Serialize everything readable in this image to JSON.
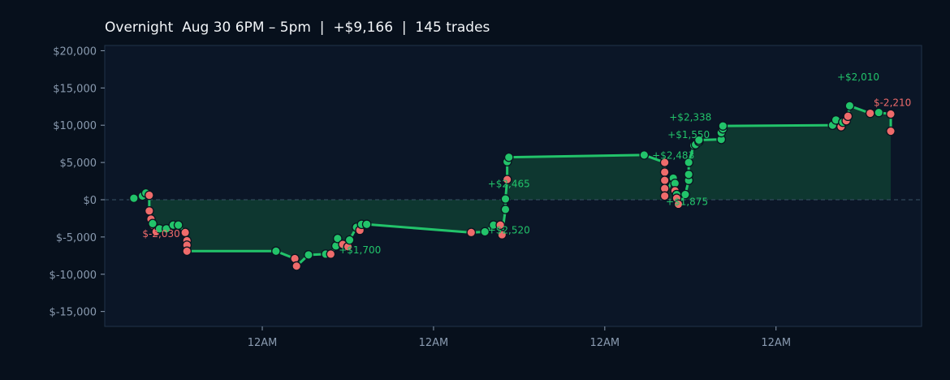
{
  "title": "Overnight  Aug 30 6PM – 5pm  |  +$9,166  |  145 trades",
  "colors": {
    "background": "#07101c",
    "plot_bg": "#0b1627",
    "line": "#22c36a",
    "fill": "#0f3d33",
    "win": "#22c36a",
    "loss": "#ef6b6b",
    "axis_text": "#8a9bb0",
    "zero_line": "#3a5166"
  },
  "chart_data": {
    "type": "line",
    "x_ticks": [
      "12AM",
      "12AM",
      "12AM",
      "12AM"
    ],
    "x_tick_positions": [
      1.0,
      2.0,
      3.0,
      4.0
    ],
    "xlim": [
      0.08,
      4.85
    ],
    "y_ticks": [
      "$20,000",
      "$15,000",
      "$10,000",
      "$5,000",
      "$0",
      "$-5,000",
      "$-10,000",
      "$-15,000"
    ],
    "y_tick_values": [
      20000,
      15000,
      10000,
      5000,
      0,
      -5000,
      -10000,
      -15000
    ],
    "ylim": [
      -17000,
      20700
    ],
    "grid": false,
    "series": [
      {
        "points": [
          [
            0.25,
            200,
            "w"
          ],
          [
            0.3,
            500,
            "w"
          ],
          [
            0.32,
            900,
            "w"
          ],
          [
            0.34,
            600,
            "l"
          ],
          [
            0.34,
            -1500,
            "l"
          ],
          [
            0.35,
            -2600,
            "l"
          ],
          [
            0.36,
            -3400,
            "l"
          ],
          [
            0.36,
            -3200,
            "w"
          ],
          [
            0.38,
            -4300,
            "l"
          ],
          [
            0.4,
            -3900,
            "w"
          ],
          [
            0.44,
            -3900,
            "w"
          ],
          [
            0.48,
            -3400,
            "w"
          ],
          [
            0.51,
            -3400,
            "w"
          ],
          [
            0.55,
            -4400,
            "l"
          ],
          [
            0.56,
            -5500,
            "l"
          ],
          [
            0.56,
            -6100,
            "l"
          ],
          [
            0.56,
            -6900,
            "l"
          ],
          [
            1.08,
            -6900,
            "w"
          ],
          [
            1.19,
            -7900,
            "l"
          ],
          [
            1.2,
            -8900,
            "l"
          ],
          [
            1.27,
            -7400,
            "w"
          ],
          [
            1.37,
            -7300,
            "w"
          ],
          [
            1.4,
            -7300,
            "l"
          ],
          [
            1.43,
            -6200,
            "w"
          ],
          [
            1.44,
            -5200,
            "w"
          ],
          [
            1.47,
            -6000,
            "l"
          ],
          [
            1.5,
            -6300,
            "l"
          ],
          [
            1.51,
            -5400,
            "w"
          ],
          [
            1.55,
            -3700,
            "w"
          ],
          [
            1.57,
            -4100,
            "l"
          ],
          [
            1.58,
            -3300,
            "w"
          ],
          [
            1.61,
            -3300,
            "w"
          ],
          [
            2.22,
            -4400,
            "l"
          ],
          [
            2.3,
            -4300,
            "w"
          ],
          [
            2.35,
            -3400,
            "w"
          ],
          [
            2.39,
            -3400,
            "l"
          ],
          [
            2.4,
            -4700,
            "l"
          ],
          [
            2.42,
            -1300,
            "w"
          ],
          [
            2.42,
            100,
            "w"
          ],
          [
            2.43,
            2700,
            "l"
          ],
          [
            2.43,
            5100,
            "w"
          ],
          [
            2.44,
            5700,
            "w"
          ],
          [
            3.23,
            6000,
            "w"
          ],
          [
            3.35,
            5000,
            "l"
          ],
          [
            3.35,
            3700,
            "l"
          ],
          [
            3.35,
            2600,
            "l"
          ],
          [
            3.35,
            1500,
            "l"
          ],
          [
            3.35,
            500,
            "l"
          ],
          [
            3.4,
            2900,
            "w"
          ],
          [
            3.41,
            2200,
            "w"
          ],
          [
            3.41,
            1200,
            "l"
          ],
          [
            3.42,
            700,
            "w"
          ],
          [
            3.42,
            200,
            "l"
          ],
          [
            3.43,
            -600,
            "l"
          ],
          [
            3.47,
            700,
            "w"
          ],
          [
            3.49,
            2600,
            "w"
          ],
          [
            3.49,
            3400,
            "w"
          ],
          [
            3.49,
            5000,
            "w"
          ],
          [
            3.52,
            7300,
            "w"
          ],
          [
            3.53,
            7400,
            "w"
          ],
          [
            3.55,
            7800,
            "w"
          ],
          [
            3.55,
            8000,
            "w"
          ],
          [
            3.68,
            8100,
            "w"
          ],
          [
            3.68,
            9000,
            "w"
          ],
          [
            3.69,
            9500,
            "w"
          ],
          [
            3.69,
            9900,
            "w"
          ],
          [
            4.33,
            10000,
            "w"
          ],
          [
            4.35,
            10700,
            "w"
          ],
          [
            4.38,
            9800,
            "l"
          ],
          [
            4.39,
            10400,
            "w"
          ],
          [
            4.41,
            10600,
            "l"
          ],
          [
            4.42,
            11200,
            "l"
          ],
          [
            4.43,
            12600,
            "w"
          ],
          [
            4.55,
            11600,
            "l"
          ],
          [
            4.6,
            11700,
            "w"
          ],
          [
            4.67,
            11500,
            "l"
          ],
          [
            4.67,
            9200,
            "l"
          ]
        ]
      }
    ],
    "annotations": [
      {
        "text": "$-2,030",
        "x": 0.41,
        "y": -5000,
        "kind": "loss"
      },
      {
        "text": "+$1,700",
        "x": 1.57,
        "y": -7200,
        "kind": "win"
      },
      {
        "text": "+$2,465",
        "x": 2.44,
        "y": 1700,
        "kind": "win"
      },
      {
        "text": "+$2,520",
        "x": 2.44,
        "y": -4500,
        "kind": "win"
      },
      {
        "text": "+$2,483",
        "x": 3.4,
        "y": 5500,
        "kind": "win"
      },
      {
        "text": "+$1,875",
        "x": 3.48,
        "y": -700,
        "kind": "win"
      },
      {
        "text": "+$2,338",
        "x": 3.5,
        "y": 10600,
        "kind": "win"
      },
      {
        "text": "+$1,550",
        "x": 3.49,
        "y": 8300,
        "kind": "win"
      },
      {
        "text": "+$2,010",
        "x": 4.48,
        "y": 16000,
        "kind": "win"
      },
      {
        "text": "$-2,210",
        "x": 4.68,
        "y": 12600,
        "kind": "loss"
      }
    ]
  }
}
